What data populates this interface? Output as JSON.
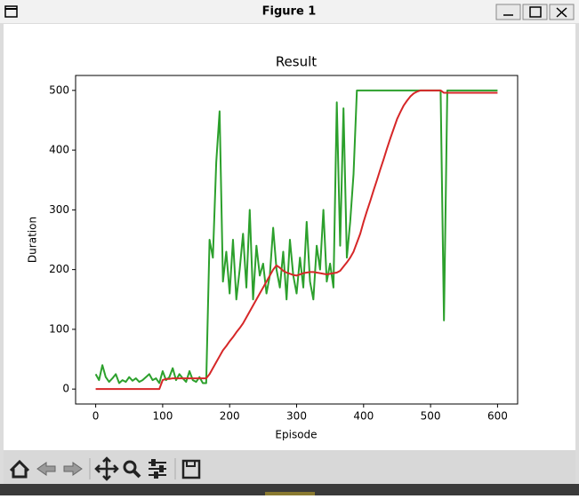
{
  "window": {
    "title": "Figure 1"
  },
  "chart_data": {
    "type": "line",
    "title": "Result",
    "xlabel": "Episode",
    "ylabel": "Duration",
    "x": [
      0,
      5,
      10,
      15,
      20,
      25,
      30,
      35,
      40,
      45,
      50,
      55,
      60,
      65,
      70,
      75,
      80,
      85,
      90,
      95,
      100,
      105,
      110,
      115,
      120,
      125,
      130,
      135,
      140,
      145,
      150,
      155,
      160,
      165,
      170,
      175,
      180,
      185,
      190,
      195,
      200,
      205,
      210,
      215,
      220,
      225,
      230,
      235,
      240,
      245,
      250,
      255,
      260,
      265,
      270,
      275,
      280,
      285,
      290,
      295,
      300,
      305,
      310,
      315,
      320,
      325,
      330,
      335,
      340,
      345,
      350,
      355,
      360,
      365,
      370,
      375,
      380,
      385,
      390,
      395,
      400,
      405,
      410,
      415,
      420,
      425,
      430,
      435,
      440,
      445,
      450,
      455,
      460,
      465,
      470,
      475,
      480,
      485,
      490,
      495,
      500,
      505,
      510,
      515,
      520,
      525,
      530,
      535,
      540,
      545,
      550,
      555,
      560,
      565,
      570,
      575,
      580,
      585,
      590,
      595,
      600
    ],
    "series": [
      {
        "color": "#2ca02c",
        "values": [
          25,
          15,
          40,
          20,
          12,
          18,
          25,
          10,
          15,
          12,
          20,
          14,
          18,
          12,
          15,
          20,
          25,
          15,
          18,
          10,
          30,
          15,
          20,
          35,
          15,
          25,
          18,
          12,
          30,
          15,
          12,
          20,
          10,
          10,
          250,
          220,
          380,
          465,
          180,
          230,
          160,
          250,
          150,
          200,
          260,
          170,
          300,
          150,
          240,
          190,
          210,
          160,
          190,
          270,
          200,
          170,
          230,
          150,
          250,
          190,
          160,
          220,
          170,
          280,
          180,
          150,
          240,
          200,
          300,
          180,
          210,
          170,
          480,
          240,
          470,
          220,
          280,
          360,
          500,
          500,
          500,
          500,
          500,
          500,
          500,
          500,
          500,
          500,
          500,
          500,
          500,
          500,
          500,
          500,
          500,
          500,
          500,
          500,
          500,
          500,
          500,
          500,
          500,
          500,
          115,
          500,
          500,
          500,
          500,
          500,
          500,
          500,
          500,
          500,
          500,
          500,
          500,
          500,
          500,
          500,
          500
        ]
      },
      {
        "color": "#d62728",
        "values": [
          0,
          0,
          0,
          0,
          0,
          0,
          0,
          0,
          0,
          0,
          0,
          0,
          0,
          0,
          0,
          0,
          0,
          0,
          0,
          0,
          15,
          17,
          17,
          18,
          18,
          18,
          18,
          18,
          18,
          18,
          18,
          18,
          18,
          18,
          25,
          35,
          45,
          55,
          65,
          72,
          80,
          87,
          95,
          102,
          110,
          120,
          130,
          140,
          150,
          160,
          170,
          180,
          190,
          200,
          207,
          203,
          198,
          195,
          193,
          191,
          190,
          192,
          194,
          195,
          196,
          196,
          195,
          194,
          193,
          192,
          193,
          194,
          195,
          198,
          205,
          212,
          220,
          230,
          245,
          260,
          280,
          298,
          315,
          333,
          350,
          368,
          385,
          403,
          420,
          436,
          452,
          464,
          475,
          483,
          490,
          495,
          498,
          500,
          500,
          500,
          500,
          500,
          500,
          500,
          496,
          496,
          496,
          496,
          496,
          496,
          496,
          496,
          496,
          496,
          496,
          496,
          496,
          496,
          496,
          496,
          496
        ]
      }
    ],
    "xlim": [
      -30,
      630
    ],
    "ylim": [
      -25,
      525
    ],
    "xticks": [
      0,
      100,
      200,
      300,
      400,
      500,
      600
    ],
    "yticks": [
      0,
      100,
      200,
      300,
      400,
      500
    ],
    "grid": false
  }
}
